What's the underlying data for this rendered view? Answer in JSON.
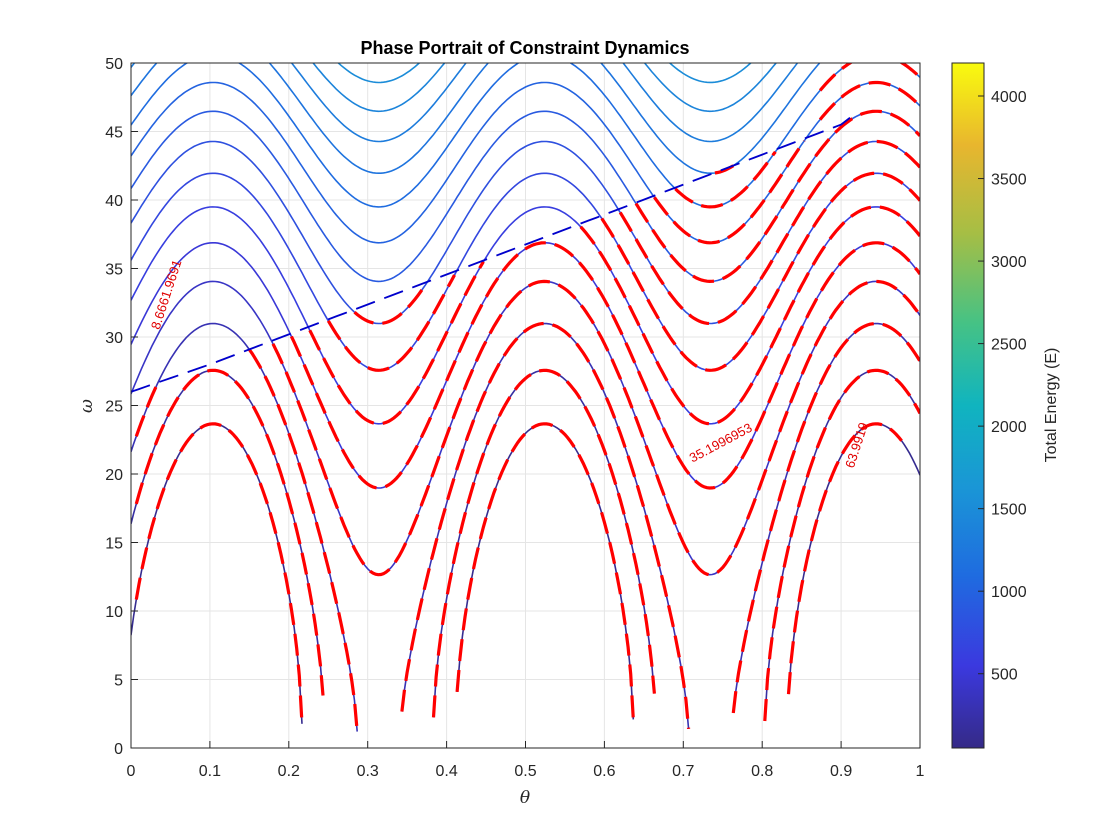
{
  "chart_data": {
    "type": "contour",
    "title": "Phase Portrait of Constraint Dynamics",
    "xlabel": "θ",
    "ylabel": "ω",
    "xlim": [
      0,
      1
    ],
    "ylim": [
      0,
      50
    ],
    "xticks": [
      "0",
      "0.1",
      "0.2",
      "0.3",
      "0.4",
      "0.5",
      "0.6",
      "0.7",
      "0.8",
      "0.9",
      "1"
    ],
    "yticks": [
      "0",
      "5",
      "10",
      "15",
      "20",
      "25",
      "30",
      "35",
      "40",
      "45",
      "50"
    ],
    "grid": true,
    "colorbar": {
      "label": "Total Energy (E)",
      "colormap": "parula",
      "range": [
        50,
        4200
      ],
      "ticks": [
        "500",
        "1000",
        "1500",
        "2000",
        "2500",
        "3000",
        "3500",
        "4000"
      ]
    },
    "energy_levels": {
      "start": 100,
      "step": 100,
      "count": 44
    },
    "constraint_overlay": {
      "color": "#ff0000",
      "boundary_color": "#0000cc",
      "style": "dashed",
      "region": "lower",
      "contour_labels": [
        "8.6661.9691",
        "35.1996953",
        "63.9919"
      ]
    },
    "colors": {
      "constraint": "#ff0000",
      "boundary": "#0000cc",
      "grid": "#e5e5e5",
      "axis": "#262626"
    }
  }
}
